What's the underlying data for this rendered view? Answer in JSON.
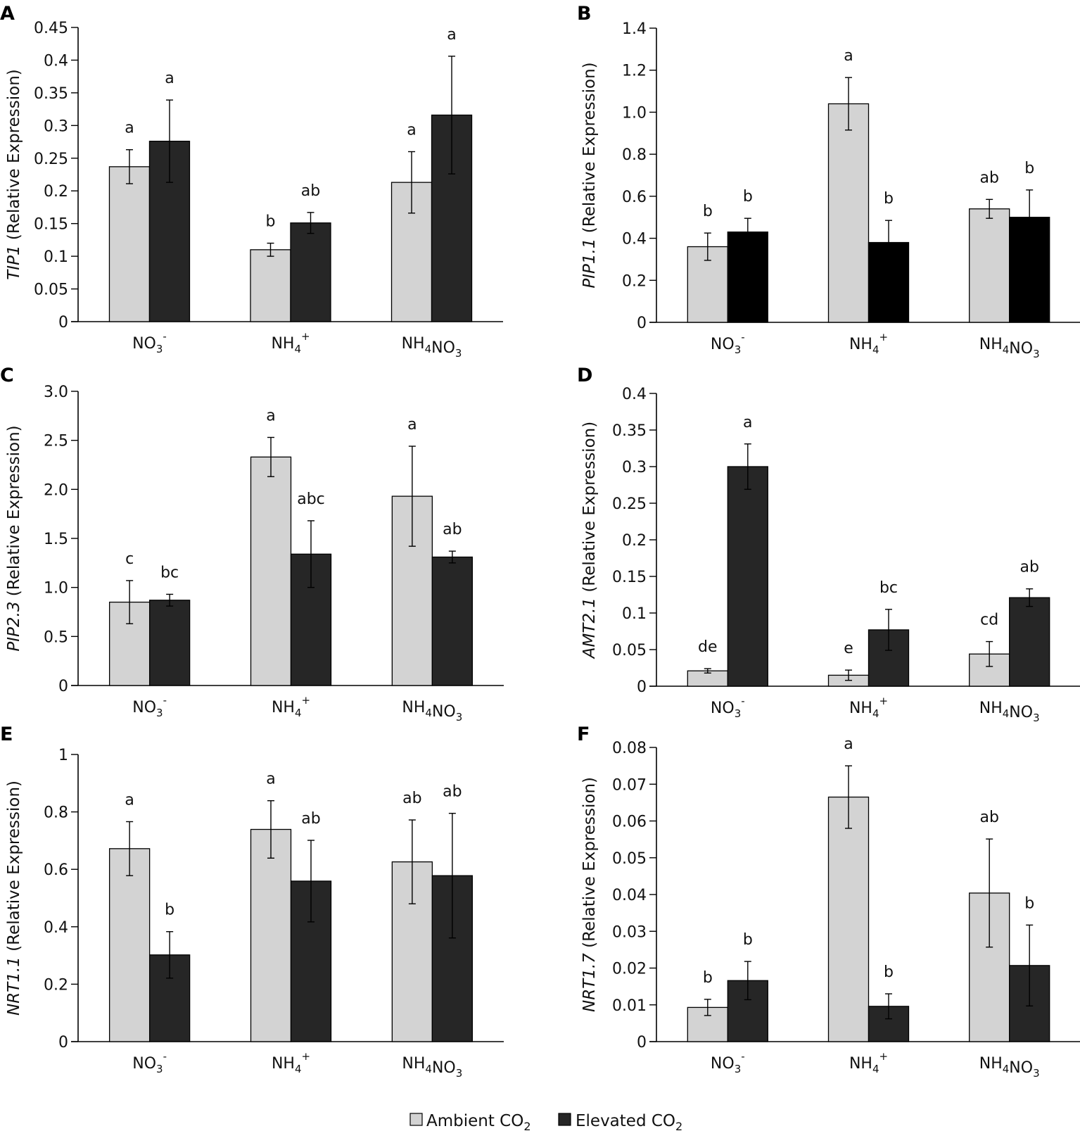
{
  "figure": {
    "legend": [
      {
        "label": "Ambient CO",
        "sub": "2",
        "color": "#d3d3d3"
      },
      {
        "label": "Elevated CO",
        "sub": "2",
        "color": "#262626"
      }
    ]
  },
  "chart_data": [
    {
      "panel": "A",
      "type": "bar",
      "ylabel_gene": "TIP1",
      "ylabel_rest": " (Relative Expression)",
      "categories": [
        {
          "main": "NO",
          "sub": "3",
          "sup": "-",
          "tail": ""
        },
        {
          "main": "NH",
          "sub": "4",
          "sup": "+",
          "tail": ""
        },
        {
          "main": "NH",
          "sub": "4",
          "sup": "",
          "tail": "NO",
          "sub2": "3"
        }
      ],
      "ylim": [
        0,
        0.45
      ],
      "ticks": [
        0,
        0.05,
        0.1,
        0.15,
        0.2,
        0.25,
        0.3,
        0.35,
        0.4,
        0.45
      ],
      "tick_labels": [
        "0",
        "0.05",
        "0.1",
        "0.15",
        "0.2",
        "0.25",
        "0.3",
        "0.35",
        "0.4",
        "0.45"
      ],
      "series": [
        {
          "name": "Ambient CO2",
          "color": "#d3d3d3",
          "values": [
            0.237,
            0.11,
            0.213
          ],
          "err": [
            0.026,
            0.01,
            0.047
          ],
          "letters": [
            "a",
            "b",
            "a"
          ]
        },
        {
          "name": "Elevated CO2",
          "color": "#262626",
          "values": [
            0.276,
            0.151,
            0.316
          ],
          "err": [
            0.063,
            0.016,
            0.09
          ],
          "letters": [
            "a",
            "ab",
            "a"
          ]
        }
      ]
    },
    {
      "panel": "B",
      "type": "bar",
      "ylabel_gene": "PIP1.1",
      "ylabel_rest": " (Relative Expression)",
      "categories": [
        {
          "main": "NO",
          "sub": "3",
          "sup": "-",
          "tail": ""
        },
        {
          "main": "NH",
          "sub": "4",
          "sup": "+",
          "tail": ""
        },
        {
          "main": "NH",
          "sub": "4",
          "sup": "",
          "tail": "NO",
          "sub2": "3"
        }
      ],
      "ylim": [
        0,
        1.4
      ],
      "ticks": [
        0,
        0.2,
        0.4,
        0.6,
        0.8,
        1.0,
        1.2,
        1.4
      ],
      "tick_labels": [
        "0",
        "0.2",
        "0.4",
        "0.6",
        "0.8",
        "1.0",
        "1.2",
        "1.4"
      ],
      "series": [
        {
          "name": "Ambient CO2",
          "color": "#d3d3d3",
          "values": [
            0.36,
            1.04,
            0.54
          ],
          "err": [
            0.065,
            0.125,
            0.045
          ],
          "letters": [
            "b",
            "a",
            "ab"
          ]
        },
        {
          "name": "Elevated CO2",
          "color": "#000000",
          "values": [
            0.43,
            0.38,
            0.5
          ],
          "err": [
            0.065,
            0.105,
            0.13
          ],
          "letters": [
            "b",
            "b",
            "b"
          ]
        }
      ]
    },
    {
      "panel": "C",
      "type": "bar",
      "ylabel_gene": "PIP2.3",
      "ylabel_rest": " (Relative Expression)",
      "categories": [
        {
          "main": "NO",
          "sub": "3",
          "sup": "-",
          "tail": ""
        },
        {
          "main": "NH",
          "sub": "4",
          "sup": "+",
          "tail": ""
        },
        {
          "main": "NH",
          "sub": "4",
          "sup": "",
          "tail": "NO",
          "sub2": "3"
        }
      ],
      "ylim": [
        0,
        3.0
      ],
      "ticks": [
        0,
        0.5,
        1.0,
        1.5,
        2.0,
        2.5,
        3.0
      ],
      "tick_labels": [
        "0",
        "0.5",
        "1.0",
        "1.5",
        "2.0",
        "2.5",
        "3.0"
      ],
      "series": [
        {
          "name": "Ambient CO2",
          "color": "#d3d3d3",
          "values": [
            0.85,
            2.33,
            1.93
          ],
          "err": [
            0.22,
            0.2,
            0.51
          ],
          "letters": [
            "c",
            "a",
            "a"
          ]
        },
        {
          "name": "Elevated CO2",
          "color": "#262626",
          "values": [
            0.87,
            1.34,
            1.31
          ],
          "err": [
            0.06,
            0.34,
            0.06
          ],
          "letters": [
            "bc",
            "abc",
            "ab"
          ]
        }
      ]
    },
    {
      "panel": "D",
      "type": "bar",
      "ylabel_gene": "AMT2.1",
      "ylabel_rest": " (Relative Expression)",
      "categories": [
        {
          "main": "NO",
          "sub": "3",
          "sup": "-",
          "tail": ""
        },
        {
          "main": "NH",
          "sub": "4",
          "sup": "+",
          "tail": ""
        },
        {
          "main": "NH",
          "sub": "4",
          "sup": "",
          "tail": "NO",
          "sub2": "3"
        }
      ],
      "ylim": [
        0,
        0.4
      ],
      "ticks": [
        0,
        0.05,
        0.1,
        0.15,
        0.2,
        0.25,
        0.3,
        0.35,
        0.4
      ],
      "tick_labels": [
        "0",
        "0.05",
        "0.1",
        "0.15",
        "0.2",
        "0.25",
        "0.3",
        "0.35",
        "0.4"
      ],
      "series": [
        {
          "name": "Ambient CO2",
          "color": "#d3d3d3",
          "values": [
            0.021,
            0.015,
            0.044
          ],
          "err": [
            0.003,
            0.007,
            0.017
          ],
          "letters": [
            "de",
            "e",
            "cd"
          ]
        },
        {
          "name": "Elevated CO2",
          "color": "#262626",
          "values": [
            0.3,
            0.077,
            0.121
          ],
          "err": [
            0.031,
            0.028,
            0.012
          ],
          "letters": [
            "a",
            "bc",
            "ab"
          ]
        }
      ]
    },
    {
      "panel": "E",
      "type": "bar",
      "ylabel_gene": "NRT1.1",
      "ylabel_rest": " (Relative Expression)",
      "categories": [
        {
          "main": "NO",
          "sub": "3",
          "sup": "-",
          "tail": ""
        },
        {
          "main": "NH",
          "sub": "4",
          "sup": "+",
          "tail": ""
        },
        {
          "main": "NH",
          "sub": "4",
          "sup": "",
          "tail": "NO",
          "sub2": "3"
        }
      ],
      "ylim": [
        0,
        1
      ],
      "ticks": [
        0,
        0.2,
        0.4,
        0.6,
        0.8,
        1
      ],
      "tick_labels": [
        "0",
        "0.2",
        "0.4",
        "0.6",
        "0.8",
        "1"
      ],
      "series": [
        {
          "name": "Ambient CO2",
          "color": "#d3d3d3",
          "values": [
            0.672,
            0.739,
            0.626
          ],
          "err": [
            0.094,
            0.1,
            0.146
          ],
          "letters": [
            "a",
            "a",
            "ab"
          ]
        },
        {
          "name": "Elevated CO2",
          "color": "#262626",
          "values": [
            0.302,
            0.559,
            0.578
          ],
          "err": [
            0.081,
            0.142,
            0.217
          ],
          "letters": [
            "b",
            "ab",
            "ab"
          ]
        }
      ]
    },
    {
      "panel": "F",
      "type": "bar",
      "ylabel_gene": "NRT1.7",
      "ylabel_rest": "  (Relative Expression)",
      "categories": [
        {
          "main": "NO",
          "sub": "3",
          "sup": "-",
          "tail": ""
        },
        {
          "main": "NH",
          "sub": "4",
          "sup": "+",
          "tail": ""
        },
        {
          "main": "NH",
          "sub": "4",
          "sup": "",
          "tail": "NO",
          "sub2": "3"
        }
      ],
      "ylim": [
        0,
        0.08
      ],
      "ticks": [
        0,
        0.01,
        0.02,
        0.03,
        0.04,
        0.05,
        0.06,
        0.07,
        0.08
      ],
      "tick_labels": [
        "0",
        "0.01",
        "0.02",
        "0.03",
        "0.04",
        "0.05",
        "0.06",
        "0.07",
        "0.08"
      ],
      "series": [
        {
          "name": "Ambient CO2",
          "color": "#d3d3d3",
          "values": [
            0.0093,
            0.0665,
            0.0404
          ],
          "err": [
            0.0022,
            0.0085,
            0.0147
          ],
          "letters": [
            "b",
            "a",
            "ab"
          ]
        },
        {
          "name": "Elevated CO2",
          "color": "#262626",
          "values": [
            0.0166,
            0.0096,
            0.0207
          ],
          "err": [
            0.0052,
            0.0034,
            0.011
          ],
          "letters": [
            "b",
            "b",
            "b"
          ]
        }
      ]
    }
  ]
}
